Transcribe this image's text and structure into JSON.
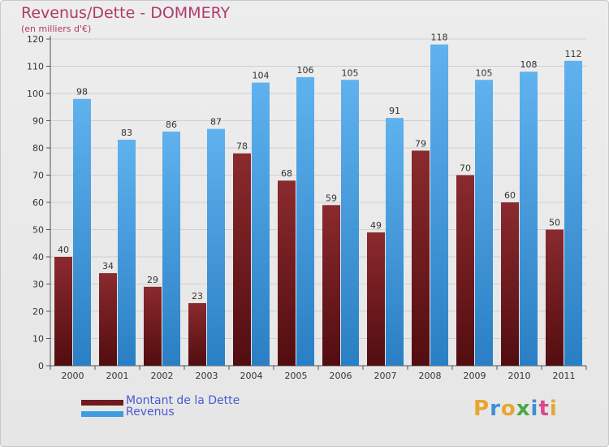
{
  "title": "Revenus/Dette - DOMMERY",
  "subtitle": "(en milliers d'€)",
  "colors": {
    "dette": "#6e1a1e",
    "revenus": "#3d9be2",
    "axis": "#555555",
    "grid": "#d0d0d0"
  },
  "legend": [
    {
      "label": "Montant de la Dette",
      "color": "#6e1a1e"
    },
    {
      "label": "Revenus",
      "color": "#3d9be2"
    }
  ],
  "logo": {
    "text": "Proxiti",
    "letters": [
      "P",
      "r",
      "o",
      "x",
      "i",
      "t",
      "i"
    ]
  },
  "chart_data": {
    "type": "bar",
    "title": "Revenus/Dette - DOMMERY",
    "subtitle": "(en milliers d'€)",
    "categories": [
      "2000",
      "2001",
      "2002",
      "2003",
      "2004",
      "2005",
      "2006",
      "2007",
      "2008",
      "2009",
      "2010",
      "2011"
    ],
    "series": [
      {
        "name": "Montant de la Dette",
        "values": [
          40,
          34,
          29,
          23,
          78,
          68,
          59,
          49,
          79,
          70,
          60,
          50
        ]
      },
      {
        "name": "Revenus",
        "values": [
          98,
          83,
          86,
          87,
          104,
          106,
          105,
          91,
          118,
          105,
          108,
          112
        ]
      }
    ],
    "yticks": [
      0,
      10,
      20,
      30,
      40,
      50,
      60,
      70,
      80,
      90,
      100,
      110,
      120
    ],
    "ylim": [
      0,
      120
    ],
    "grid": true,
    "legend_position": "bottom-left"
  }
}
